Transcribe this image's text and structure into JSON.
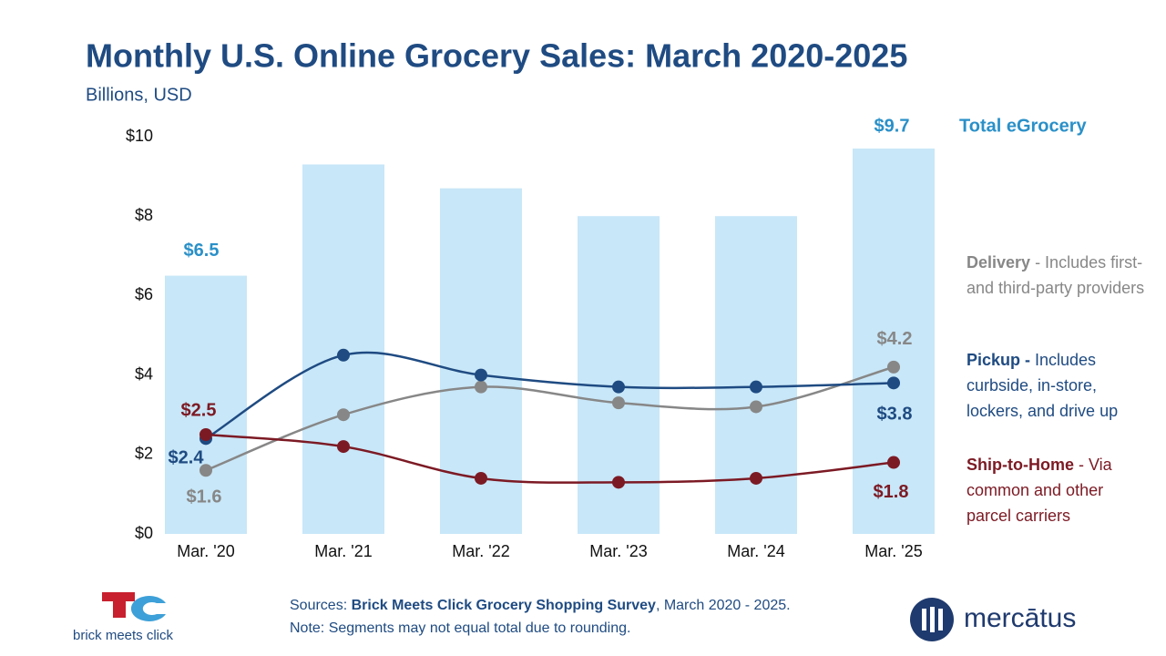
{
  "chart_data": {
    "type": "combo",
    "title": "Monthly U.S. Online Grocery Sales: March 2020-2025",
    "subtitle": "Billions, USD",
    "categories": [
      "Mar. '20",
      "Mar. '21",
      "Mar. '22",
      "Mar. '23",
      "Mar. '24",
      "Mar. '25"
    ],
    "ylim": [
      0,
      10
    ],
    "yticks": [
      {
        "value": 0,
        "label": "$0"
      },
      {
        "value": 2,
        "label": "$2"
      },
      {
        "value": 4,
        "label": "$4"
      },
      {
        "value": 6,
        "label": "$6"
      },
      {
        "value": 8,
        "label": "$8"
      },
      {
        "value": 10,
        "label": "$10"
      }
    ],
    "grid": false,
    "series": [
      {
        "name": "Total eGrocery",
        "type": "bar",
        "color": "#c8e7f8",
        "label_color": "#2a90c8",
        "values": [
          6.5,
          9.3,
          8.7,
          8.0,
          8.0,
          9.7
        ],
        "value_labels": [
          "$6.5",
          null,
          null,
          null,
          null,
          "$9.7"
        ]
      },
      {
        "name": "Delivery",
        "description": " - Includes first- and third-party providers",
        "type": "line",
        "color": "#878787",
        "values": [
          1.6,
          3.0,
          3.7,
          3.3,
          3.2,
          4.2
        ],
        "value_labels": [
          "$1.6",
          null,
          null,
          null,
          null,
          "$4.2"
        ]
      },
      {
        "name": "Pickup -",
        "description": " Includes curbside, in-store, lockers, and drive up",
        "type": "line",
        "color": "#1f4b82",
        "values": [
          2.4,
          4.5,
          4.0,
          3.7,
          3.7,
          3.8
        ],
        "value_labels": [
          "$2.4",
          null,
          null,
          null,
          null,
          "$3.8"
        ]
      },
      {
        "name": "Ship-to-Home",
        "description": " - Via common and other parcel carriers",
        "type": "line",
        "color": "#7c1a24",
        "values": [
          2.5,
          2.2,
          1.4,
          1.3,
          1.4,
          1.8
        ],
        "value_labels": [
          "$2.5",
          null,
          null,
          null,
          null,
          "$1.8"
        ]
      }
    ]
  },
  "footer": {
    "sources_prefix": "Sources: ",
    "sources_bold": "Brick Meets Click Grocery Shopping Survey",
    "sources_rest": ", March 2020 - 2025.",
    "note": "Note: Segments may not equal total due to rounding.",
    "left_logo": "brick meets click",
    "right_logo": "mercātus"
  }
}
